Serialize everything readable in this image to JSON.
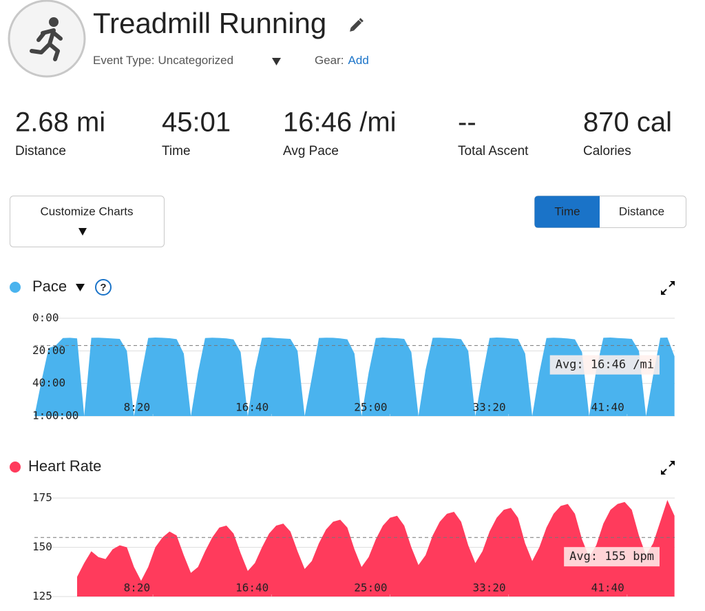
{
  "header": {
    "title": "Treadmill Running",
    "event_type_label": "Event Type:",
    "event_type": "Uncategorized",
    "gear_label": "Gear:",
    "gear_action": "Add"
  },
  "stats": [
    {
      "value": "2.68 mi",
      "label": "Distance"
    },
    {
      "value": "45:01",
      "label": "Time"
    },
    {
      "value": "16:46 /mi",
      "label": "Avg Pace"
    },
    {
      "value": "--",
      "label": "Total Ascent"
    },
    {
      "value": "870 cal",
      "label": "Calories"
    }
  ],
  "controls": {
    "customize": "Customize Charts",
    "toggle": [
      "Time",
      "Distance"
    ]
  },
  "chart_data": [
    {
      "type": "area",
      "title": "Pace",
      "color": "#4ab3ee",
      "grid": true,
      "x": [
        0,
        30,
        60,
        90,
        120,
        150,
        180,
        210,
        240,
        270,
        300,
        330,
        360,
        390,
        420,
        450,
        480,
        510,
        540,
        570,
        600,
        630,
        660,
        690,
        720,
        750,
        780,
        810,
        840,
        870,
        900,
        930,
        960,
        990,
        1020,
        1050,
        1080,
        1110,
        1140,
        1170,
        1200,
        1230,
        1260,
        1290,
        1320,
        1350,
        1380,
        1410,
        1440,
        1470,
        1500,
        1530,
        1560,
        1590,
        1620,
        1650,
        1680,
        1710,
        1740,
        1770,
        1800,
        1830,
        1860,
        1890,
        1920,
        1950,
        1980,
        2010,
        2040,
        2070,
        2100,
        2130,
        2160,
        2190,
        2220,
        2250,
        2280,
        2310,
        2340,
        2370,
        2400,
        2430,
        2460,
        2490,
        2520,
        2550,
        2580,
        2610,
        2640,
        2670,
        2700
      ],
      "values": [
        3600,
        2300,
        1100,
        1000,
        730,
        720,
        740,
        3600,
        720,
        715,
        730,
        745,
        760,
        1200,
        3600,
        2100,
        725,
        710,
        720,
        735,
        770,
        1300,
        3600,
        2000,
        730,
        715,
        725,
        740,
        780,
        1250,
        3600,
        1900,
        720,
        710,
        730,
        745,
        760,
        1200,
        3600,
        2200,
        725,
        715,
        720,
        740,
        775,
        1300,
        3600,
        2000,
        730,
        710,
        725,
        735,
        760,
        1250,
        3600,
        1900,
        720,
        715,
        730,
        745,
        770,
        1200,
        3600,
        2100,
        725,
        710,
        720,
        740,
        765,
        1300,
        3600,
        2000,
        730,
        715,
        725,
        745,
        775,
        1250,
        3600,
        1900,
        720,
        710,
        730,
        740,
        760,
        1200,
        3600,
        2100,
        720,
        710,
        1400
      ],
      "xlim": [
        0,
        2701
      ],
      "xticks": [
        {
          "value": 500,
          "label": "8:20"
        },
        {
          "value": 1000,
          "label": "16:40"
        },
        {
          "value": 1500,
          "label": "25:00"
        },
        {
          "value": 2000,
          "label": "33:20"
        },
        {
          "value": 2500,
          "label": "41:40"
        }
      ],
      "ylim": [
        3600,
        0
      ],
      "yticks": [
        {
          "value": 0,
          "label": "0:00"
        },
        {
          "value": 1200,
          "label": "20:00"
        },
        {
          "value": 2400,
          "label": "40:00"
        },
        {
          "value": 3600,
          "label": "1:00:00"
        }
      ],
      "average": {
        "value": 1006,
        "label": "Avg: 16:46 /mi"
      }
    },
    {
      "type": "area",
      "title": "Heart Rate",
      "color": "#ff3b5c",
      "grid": true,
      "x": [
        0,
        30,
        60,
        90,
        120,
        150,
        180,
        210,
        240,
        270,
        300,
        330,
        360,
        390,
        420,
        450,
        480,
        510,
        540,
        570,
        600,
        630,
        660,
        690,
        720,
        750,
        780,
        810,
        840,
        870,
        900,
        930,
        960,
        990,
        1020,
        1050,
        1080,
        1110,
        1140,
        1170,
        1200,
        1230,
        1260,
        1290,
        1320,
        1350,
        1380,
        1410,
        1440,
        1470,
        1500,
        1530,
        1560,
        1590,
        1620,
        1650,
        1680,
        1710,
        1740,
        1770,
        1800,
        1830,
        1860,
        1890,
        1920,
        1950,
        1980,
        2010,
        2040,
        2070,
        2100,
        2130,
        2160,
        2190,
        2220,
        2250,
        2280,
        2310,
        2340,
        2370,
        2400,
        2430,
        2460,
        2490,
        2520,
        2550,
        2580,
        2610,
        2640,
        2670,
        2700
      ],
      "values": [
        null,
        null,
        null,
        null,
        null,
        null,
        135,
        142,
        148,
        145,
        144,
        149,
        151,
        150,
        140,
        133,
        140,
        150,
        155,
        158,
        156,
        146,
        137,
        140,
        148,
        155,
        160,
        161,
        157,
        147,
        138,
        142,
        150,
        157,
        161,
        162,
        158,
        148,
        139,
        143,
        152,
        159,
        163,
        164,
        160,
        149,
        140,
        145,
        154,
        161,
        165,
        166,
        161,
        150,
        141,
        146,
        156,
        163,
        167,
        168,
        163,
        151,
        142,
        148,
        158,
        165,
        169,
        170,
        165,
        152,
        143,
        150,
        160,
        167,
        171,
        172,
        167,
        154,
        145,
        151,
        162,
        169,
        172,
        173,
        169,
        156,
        146,
        152,
        163,
        174,
        166
      ],
      "xlim": [
        0,
        2701
      ],
      "xticks": [
        {
          "value": 500,
          "label": "8:20"
        },
        {
          "value": 1000,
          "label": "16:40"
        },
        {
          "value": 1500,
          "label": "25:00"
        },
        {
          "value": 2000,
          "label": "33:20"
        },
        {
          "value": 2500,
          "label": "41:40"
        }
      ],
      "ylim": [
        125,
        175
      ],
      "yticks": [
        125,
        150,
        175
      ],
      "average": {
        "value": 155,
        "label": "Avg: 155 bpm"
      }
    }
  ]
}
